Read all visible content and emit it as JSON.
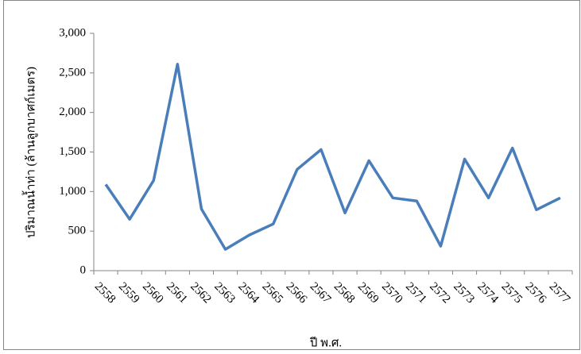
{
  "chart_data": {
    "type": "line",
    "x_label": "ปี พ.ศ.",
    "y_label": "ปริมาณน้ำท่า (ล้านลูกบาศก์เมตร)",
    "categories": [
      "2558",
      "2559",
      "2560",
      "2561",
      "2562",
      "2563",
      "2564",
      "2565",
      "2566",
      "2567",
      "2568",
      "2569",
      "2570",
      "2571",
      "2572",
      "2573",
      "2574",
      "2575",
      "2576",
      "2577"
    ],
    "series": [
      {
        "color": "#4a7ebb",
        "values": [
          1090,
          650,
          1140,
          2610,
          780,
          270,
          450,
          590,
          1280,
          1530,
          730,
          1390,
          920,
          880,
          310,
          1410,
          920,
          1550,
          770,
          920
        ]
      }
    ],
    "ylim": [
      0,
      3000
    ],
    "yticks": [
      0,
      500,
      {
        "value": 1000,
        "label": "1,000"
      },
      {
        "value": 1500,
        "label": "1,500"
      },
      {
        "value": 2000,
        "label": "2,000"
      },
      {
        "value": 2500,
        "label": "2,500"
      },
      {
        "value": 3000,
        "label": "3,000"
      }
    ],
    "grid": false
  }
}
